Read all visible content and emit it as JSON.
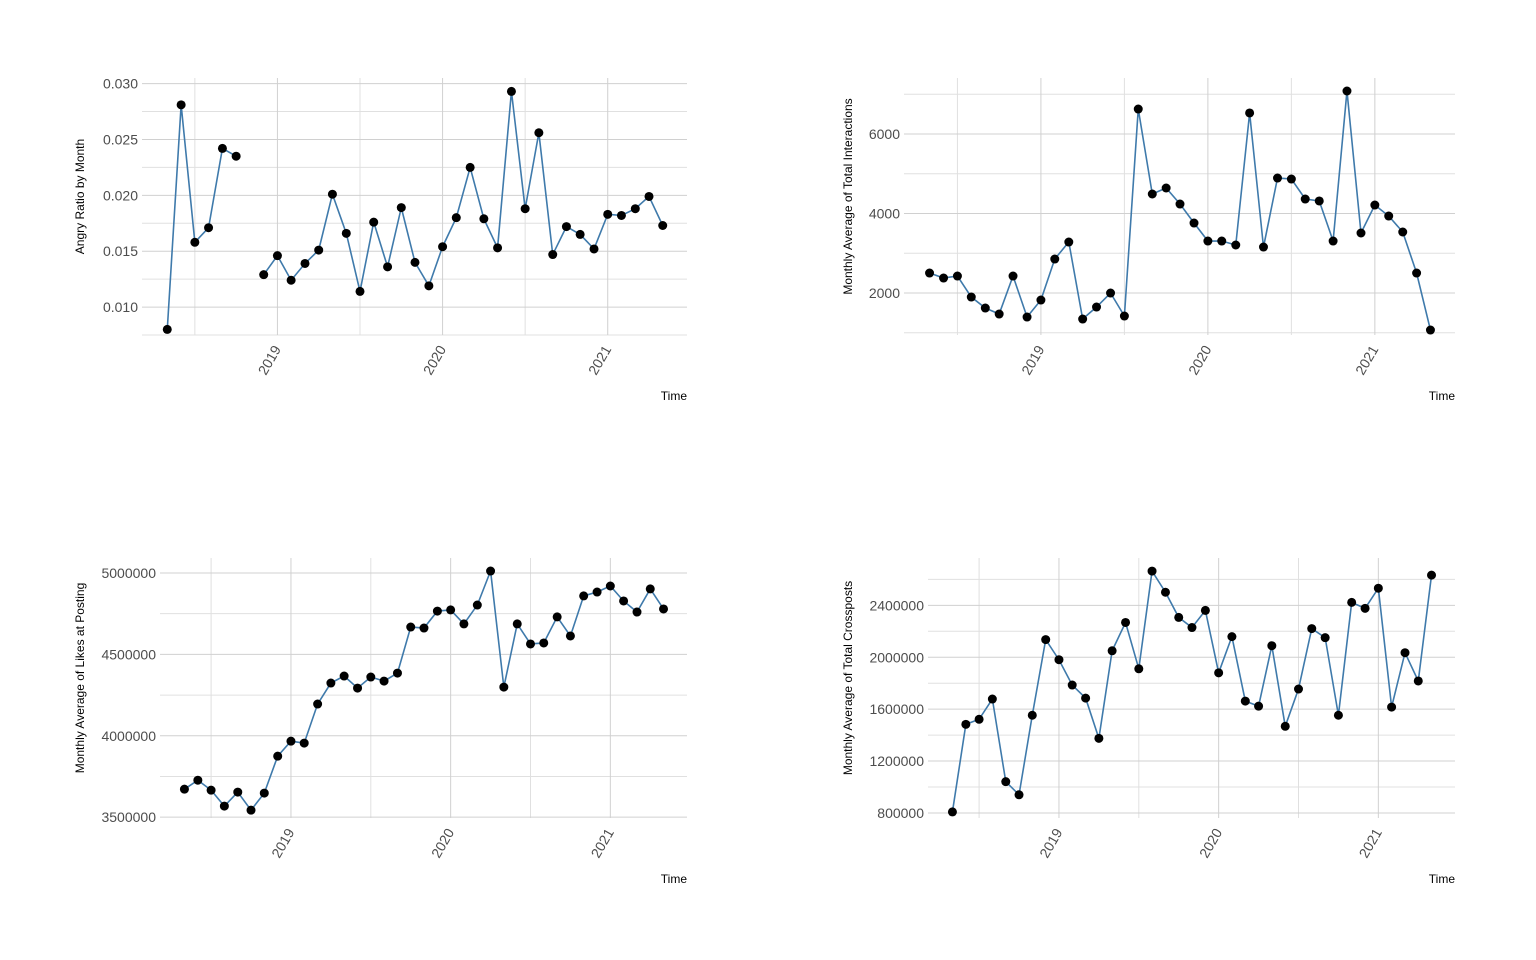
{
  "chart_data": [
    {
      "type": "line",
      "y_label": "Angry Ratio by Month",
      "x_label": "Time",
      "color": "#3f7aab",
      "marker_color": "#000000",
      "grid": true,
      "x": [
        2018.333,
        2018.417,
        2018.5,
        2018.583,
        2018.667,
        2018.75,
        2018.833,
        2018.917,
        2019,
        2019.083,
        2019.167,
        2019.25,
        2019.333,
        2019.417,
        2019.5,
        2019.583,
        2019.667,
        2019.75,
        2019.833,
        2019.917,
        2020,
        2020.083,
        2020.167,
        2020.25,
        2020.333,
        2020.417,
        2020.5,
        2020.583,
        2020.667,
        2020.75,
        2020.833,
        2020.917,
        2021,
        2021.083,
        2021.167,
        2021.25,
        2021.333
      ],
      "values": [
        0.008,
        0.0281,
        0.0158,
        0.0171,
        0.0242,
        0.0235,
        null,
        0.0129,
        0.0146,
        0.0124,
        0.0139,
        0.0151,
        0.0201,
        0.0166,
        0.0114,
        0.0176,
        0.0136,
        0.0189,
        0.014,
        0.0119,
        0.0154,
        0.018,
        0.0225,
        0.0179,
        0.0153,
        0.0293,
        0.0188,
        0.0256,
        0.0147,
        0.0172,
        0.0165,
        0.0152,
        0.0183,
        0.0182,
        0.0188,
        0.0199,
        0.0173
      ],
      "xlim": [
        2018.18,
        2021.48
      ],
      "xticks": [
        2019,
        2020,
        2021
      ],
      "ylim": [
        0.0075,
        0.0305
      ],
      "yticks": [
        {
          "value": 0.01,
          "label": "0.010"
        },
        0.015,
        {
          "value": 0.02,
          "label": "0.020"
        },
        0.025,
        {
          "value": 0.03,
          "label": "0.030"
        }
      ]
    },
    {
      "type": "line",
      "y_label": "Monthly Average of Total Interactions",
      "x_label": "Time",
      "color": "#3f7aab",
      "marker_color": "#000000",
      "grid": true,
      "x": [
        2018.333,
        2018.417,
        2018.5,
        2018.583,
        2018.667,
        2018.75,
        2018.833,
        2018.917,
        2019,
        2019.083,
        2019.167,
        2019.25,
        2019.333,
        2019.417,
        2019.5,
        2019.583,
        2019.667,
        2019.75,
        2019.833,
        2019.917,
        2020,
        2020.083,
        2020.167,
        2020.25,
        2020.333,
        2020.417,
        2020.5,
        2020.583,
        2020.667,
        2020.75,
        2020.833,
        2020.917,
        2021,
        2021.083,
        2021.167,
        2021.25,
        2021.333
      ],
      "values": [
        2503,
        2377,
        2428,
        1899,
        1623,
        1472,
        2428,
        1396,
        1824,
        2855,
        3283,
        1346,
        1648,
        2000,
        1421,
        6629,
        4491,
        4642,
        4239,
        3761,
        3308,
        3308,
        3208,
        6529,
        3157,
        4893,
        4868,
        4365,
        4315,
        3308,
        7082,
        3510,
        4214,
        3937,
        3535,
        2503,
        1069
      ],
      "xlim": [
        2018.18,
        2021.48
      ],
      "xticks": [
        2019,
        2020,
        2021
      ],
      "ylim": [
        944,
        7409
      ],
      "yticks": [
        2000,
        4000,
        6000
      ]
    },
    {
      "type": "line",
      "y_label": "Monthly Average of Likes at Posting",
      "x_label": "Time",
      "color": "#3f7aab",
      "marker_color": "#000000",
      "grid": true,
      "x": [
        2018.333,
        2018.417,
        2018.5,
        2018.583,
        2018.667,
        2018.75,
        2018.833,
        2018.917,
        2019,
        2019.083,
        2019.167,
        2019.25,
        2019.333,
        2019.417,
        2019.5,
        2019.583,
        2019.667,
        2019.75,
        2019.833,
        2019.917,
        2020,
        2020.083,
        2020.167,
        2020.25,
        2020.333,
        2020.417,
        2020.5,
        2020.583,
        2020.667,
        2020.75,
        2020.833,
        2020.917,
        2021,
        2021.083,
        2021.167,
        2021.25,
        2021.333
      ],
      "values": [
        3672000,
        3727000,
        3666000,
        3568000,
        3654000,
        3543000,
        3648000,
        3875000,
        3967000,
        3955000,
        4195000,
        4324000,
        4367000,
        4293000,
        4361000,
        4336000,
        4385000,
        4668000,
        4662000,
        4766000,
        4773000,
        4687000,
        4803000,
        5012000,
        4299000,
        4687000,
        4564000,
        4570000,
        4730000,
        4613000,
        4859000,
        4883000,
        4920000,
        4828000,
        4760000,
        4902000,
        4779000
      ],
      "xlim": [
        2018.18,
        2021.48
      ],
      "xticks": [
        2019,
        2020,
        2021
      ],
      "ylim": [
        3495000,
        5092000
      ],
      "yticks": [
        3500000,
        4000000,
        4500000,
        5000000
      ]
    },
    {
      "type": "line",
      "y_label": "Monthly Average of Total Crossposts",
      "x_label": "Time",
      "color": "#3f7aab",
      "marker_color": "#000000",
      "grid": true,
      "x": [
        2018.333,
        2018.417,
        2018.5,
        2018.583,
        2018.667,
        2018.75,
        2018.833,
        2018.917,
        2019,
        2019.083,
        2019.167,
        2019.25,
        2019.333,
        2019.417,
        2019.5,
        2019.583,
        2019.667,
        2019.75,
        2019.833,
        2019.917,
        2020,
        2020.083,
        2020.167,
        2020.25,
        2020.333,
        2020.417,
        2020.5,
        2020.583,
        2020.667,
        2020.75,
        2020.833,
        2020.917,
        2021,
        2021.083,
        2021.167,
        2021.25,
        2021.333
      ],
      "values": [
        808000,
        1483000,
        1522000,
        1678000,
        1041000,
        940000,
        1553000,
        2136000,
        1981000,
        1786000,
        1685000,
        1375000,
        2050000,
        2268000,
        1911000,
        2664000,
        2501000,
        2307000,
        2229000,
        2361000,
        1880000,
        2159000,
        1662000,
        1623000,
        2089000,
        1468000,
        1755000,
        2221000,
        2151000,
        1553000,
        2423000,
        2377000,
        2532000,
        1616000,
        2035000,
        1817000,
        2633000
      ],
      "xlim": [
        2018.18,
        2021.48
      ],
      "xticks": [
        2019,
        2020,
        2021
      ],
      "ylim": [
        761000,
        2765000
      ],
      "yticks": [
        800000,
        1200000,
        1600000,
        2000000,
        2400000
      ]
    }
  ]
}
